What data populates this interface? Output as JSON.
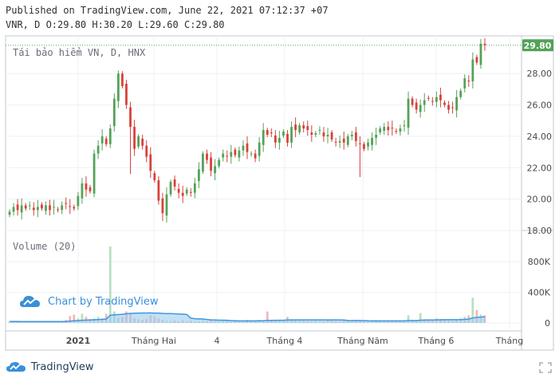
{
  "header": {
    "published_line": "Published on TradingView.com, June 22, 2021 07:12:37 +07",
    "ohlc_line": "VNR, D O:29.80 H:30.20 L:29.60 C:29.80"
  },
  "price_pane": {
    "legend": "Tái bảo hiểm VN, D, HNX",
    "last_price_label": "29.80",
    "y_ticks": [
      "28.00",
      "26.00",
      "24.00",
      "22.00",
      "20.00",
      "18.00"
    ]
  },
  "volume_pane": {
    "legend": "Volume (20)",
    "y_ticks": [
      "800K",
      "400K",
      "0"
    ]
  },
  "watermark": {
    "text": "Chart by TradingView"
  },
  "footer": {
    "brand": "TradingView"
  },
  "colors": {
    "up": "#53a258",
    "down": "#d9403a",
    "vol_up": "#b9dfc0",
    "vol_down": "#f1b9b6",
    "vol_ma_fill": "#9ccbef",
    "vol_ma_line": "#3f96e0",
    "last_price_bg": "#53a258",
    "grid": "#eef0f3",
    "border": "#c4c7cc"
  },
  "chart_data": {
    "type": "candlestick",
    "symbol": "VNR",
    "exchange": "HNX",
    "interval": "D",
    "x_tick_labels": [
      "2021",
      "Tháng Hai",
      "4",
      "Tháng 4",
      "Tháng Năm",
      "Tháng 6",
      "Tháng"
    ],
    "price_ylim": [
      18,
      30.4
    ],
    "volume_ylim": [
      0,
      1000000
    ],
    "price_axis": "right",
    "grid": true,
    "last_close": 29.8,
    "closes": [
      19.2,
      19.5,
      19.3,
      19.6,
      19.4,
      19.6,
      19.3,
      19.5,
      19.4,
      19.6,
      19.3,
      19.5,
      19.3,
      19.6,
      19.7,
      19.5,
      19.4,
      20.2,
      21.0,
      20.6,
      20.5,
      22.9,
      23.4,
      24.0,
      23.5,
      24.5,
      26.4,
      28.0,
      27.2,
      26.0,
      24.6,
      23.2,
      24.0,
      23.4,
      22.7,
      21.8,
      21.2,
      19.9,
      19.1,
      20.3,
      21.1,
      20.8,
      20.4,
      20.2,
      20.6,
      20.4,
      21.0,
      21.9,
      22.9,
      22.5,
      21.8,
      22.1,
      22.5,
      22.9,
      22.7,
      23.0,
      22.8,
      23.1,
      23.4,
      23.0,
      22.9,
      22.6,
      23.6,
      24.4,
      24.1,
      24.2,
      23.6,
      23.9,
      24.3,
      23.6,
      24.6,
      24.4,
      24.7,
      24.5,
      24.4,
      24.1,
      24.2,
      24.4,
      24.0,
      24.1,
      23.8,
      23.6,
      23.7,
      23.6,
      24.0,
      24.1,
      23.7,
      23.5,
      23.2,
      23.6,
      23.9,
      24.1,
      24.5,
      24.6,
      24.4,
      24.5,
      24.3,
      24.5,
      24.7,
      26.4,
      26.0,
      25.7,
      26.0,
      26.3,
      26.4,
      26.2,
      26.5,
      26.3,
      26.0,
      25.7,
      25.8,
      26.5,
      26.9,
      27.7,
      27.5,
      28.9,
      28.7,
      29.9,
      29.8
    ],
    "volumes": [
      20000,
      18000,
      22000,
      15000,
      19000,
      17000,
      21000,
      18000,
      16000,
      20000,
      19000,
      17000,
      18000,
      16000,
      40000,
      90000,
      110000,
      60000,
      120000,
      80000,
      50000,
      60000,
      80000,
      60000,
      120000,
      1000000,
      150000,
      70000,
      80000,
      150000,
      130000,
      60000,
      50000,
      40000,
      50000,
      100000,
      80000,
      60000,
      40000,
      30000,
      25000,
      30000,
      20000,
      35000,
      25000,
      30000,
      20000,
      25000,
      30000,
      20000,
      35000,
      25000,
      20000,
      30000,
      25000,
      20000,
      35000,
      30000,
      25000,
      40000,
      30000,
      25000,
      40000,
      35000,
      150000,
      30000,
      25000,
      40000,
      30000,
      80000,
      50000,
      40000,
      35000,
      30000,
      25000,
      20000,
      30000,
      25000,
      20000,
      30000,
      35000,
      25000,
      20000,
      30000,
      25000,
      20000,
      30000,
      25000,
      20000,
      30000,
      35000,
      40000,
      30000,
      25000,
      20000,
      30000,
      25000,
      20000,
      30000,
      100000,
      40000,
      30000,
      130000,
      50000,
      40000,
      35000,
      60000,
      50000,
      40000,
      30000,
      25000,
      40000,
      60000,
      80000,
      100000,
      330000,
      170000,
      110000,
      100000
    ]
  }
}
